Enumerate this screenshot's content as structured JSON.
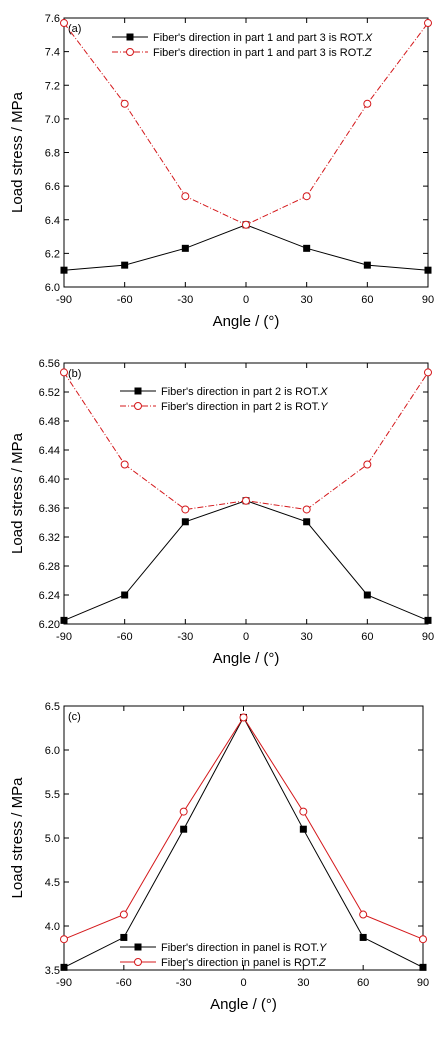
{
  "chart_data": [
    {
      "type": "line",
      "panel_label": "(a)",
      "xlabel": "Angle / (°)",
      "ylabel": "Load stress / MPa",
      "xlim": [
        -90,
        90
      ],
      "ylim": [
        6.0,
        7.6
      ],
      "xticks": [
        -90,
        -60,
        -30,
        0,
        30,
        60,
        90
      ],
      "yticks": [
        "6.0",
        "6.2",
        "6.4",
        "6.6",
        "6.8",
        "7.0",
        "7.2",
        "7.4",
        "7.6"
      ],
      "x": [
        -90,
        -60,
        -30,
        0,
        30,
        60,
        90
      ],
      "series": [
        {
          "name": "Fiber's direction in part 1 and part 3 is ROT.",
          "name_italic": "X",
          "color": "#000000",
          "marker": "filled-square",
          "dash": "solid",
          "values": [
            6.1,
            6.13,
            6.23,
            6.37,
            6.23,
            6.13,
            6.1
          ]
        },
        {
          "name": "Fiber's direction in part 1 and part 3 is ROT.",
          "name_italic": "Z",
          "color": "#d4181b",
          "marker": "open-circle",
          "dash": "dashdot",
          "values": [
            7.57,
            7.09,
            6.54,
            6.37,
            6.54,
            7.09,
            7.57
          ]
        }
      ],
      "legend": "top-center"
    },
    {
      "type": "line",
      "panel_label": "(b)",
      "xlabel": "Angle / (°)",
      "ylabel": "Load stress / MPa",
      "xlim": [
        -90,
        90
      ],
      "ylim": [
        6.2,
        6.56
      ],
      "xticks": [
        -90,
        -60,
        -30,
        0,
        30,
        60,
        90
      ],
      "yticks": [
        "6.20",
        "6.24",
        "6.28",
        "6.32",
        "6.36",
        "6.40",
        "6.44",
        "6.48",
        "6.52",
        "6.56"
      ],
      "x": [
        -90,
        -60,
        -30,
        0,
        30,
        60,
        90
      ],
      "series": [
        {
          "name": "Fiber's direction in part 2 is ROT.",
          "name_italic": "X",
          "color": "#000000",
          "marker": "filled-square",
          "dash": "solid",
          "values": [
            6.205,
            6.24,
            6.341,
            6.37,
            6.341,
            6.24,
            6.205
          ]
        },
        {
          "name": "Fiber's direction in part 2 is ROT.",
          "name_italic": "Y",
          "color": "#d4181b",
          "marker": "open-circle",
          "dash": "dashdot",
          "values": [
            6.547,
            6.42,
            6.358,
            6.37,
            6.358,
            6.42,
            6.547
          ]
        }
      ],
      "legend": "top-center"
    },
    {
      "type": "line",
      "panel_label": "(c)",
      "xlabel": "Angle / (°)",
      "ylabel": "Load stress / MPa",
      "xlim": [
        -90,
        90
      ],
      "ylim": [
        3.5,
        6.5
      ],
      "xticks": [
        -90,
        -60,
        -30,
        0,
        30,
        60,
        90
      ],
      "yticks": [
        "3.5",
        "4.0",
        "4.5",
        "5.0",
        "5.5",
        "6.0",
        "6.5"
      ],
      "x": [
        -90,
        -60,
        -30,
        0,
        30,
        60,
        90
      ],
      "series": [
        {
          "name": "Fiber's direction in panel is ROT.",
          "name_italic": "Y",
          "color": "#000000",
          "marker": "filled-square",
          "dash": "solid",
          "values": [
            3.53,
            3.87,
            5.1,
            6.37,
            5.1,
            3.87,
            3.53
          ]
        },
        {
          "name": "Fiber's direction in panel is ROT.",
          "name_italic": "Z",
          "color": "#d4181b",
          "marker": "open-circle",
          "dash": "solid",
          "values": [
            3.85,
            4.13,
            5.3,
            6.37,
            5.3,
            4.13,
            3.85
          ]
        }
      ],
      "legend": "bottom-center"
    }
  ]
}
